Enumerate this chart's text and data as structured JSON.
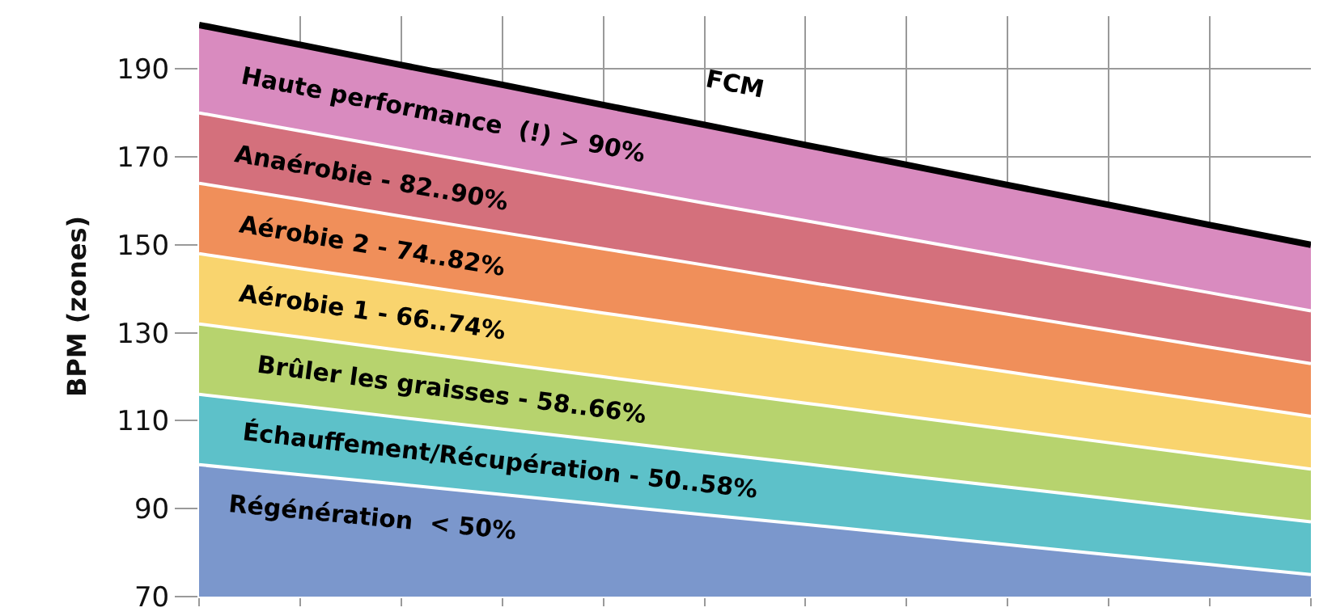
{
  "chart_data": {
    "type": "area",
    "ylabel": "BPM (zones)",
    "categories": [
      null,
      null,
      null,
      null,
      null,
      null,
      null,
      null,
      null,
      null,
      null,
      null
    ],
    "ylim": [
      70,
      202
    ],
    "yticks": [
      70,
      90,
      110,
      130,
      150,
      170,
      190
    ],
    "grid": true,
    "tick_labels": "y",
    "annotations": [
      "FCM"
    ],
    "series": [
      {
        "name": "Régénération  < 50%",
        "color": "#7b97cc",
        "values": [
          100,
          97.7,
          95.5,
          93.2,
          90.9,
          88.6,
          86.4,
          84.1,
          81.8,
          79.5,
          77.3,
          75
        ]
      },
      {
        "name": "Échauffement/Récupération - 50..58%",
        "color": "#5dc1c9",
        "values": [
          116,
          113.4,
          110.7,
          108.1,
          105.5,
          102.8,
          100.2,
          97.5,
          94.9,
          92.3,
          89.6,
          87
        ]
      },
      {
        "name": "Brûler les graisses - 58..66%",
        "color": "#b7d36e",
        "values": [
          132,
          129,
          126,
          123,
          120,
          117,
          114,
          111,
          108,
          105,
          102,
          99
        ]
      },
      {
        "name": "Aérobie 1 - 66..74%",
        "color": "#f9d46e",
        "values": [
          148,
          144.6,
          141.3,
          137.9,
          134.5,
          131.2,
          127.8,
          124.5,
          121.1,
          117.7,
          114.4,
          111
        ]
      },
      {
        "name": "Aérobie 2 - 74..82%",
        "color": "#f08f5a",
        "values": [
          164,
          160.3,
          156.5,
          152.8,
          149.1,
          145.4,
          141.6,
          137.9,
          134.2,
          130.5,
          126.7,
          123
        ]
      },
      {
        "name": "Anaérobie - 82..90%",
        "color": "#d4707c",
        "values": [
          180,
          175.9,
          171.8,
          167.7,
          163.6,
          159.5,
          155.5,
          151.4,
          147.3,
          143.2,
          139.1,
          135
        ]
      },
      {
        "name": "Haute performance  (!) > 90%",
        "color": "#d98bbf",
        "values": [
          200,
          195.5,
          190.9,
          186.4,
          181.8,
          177.3,
          172.7,
          168.2,
          163.6,
          159.1,
          154.5,
          150
        ]
      }
    ]
  }
}
